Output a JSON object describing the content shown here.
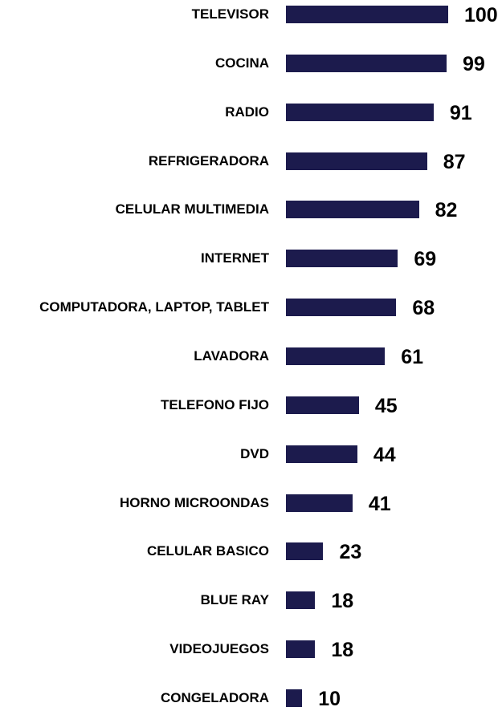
{
  "chart_data": {
    "type": "bar",
    "orientation": "horizontal",
    "color": "#1c1b4d",
    "categories": [
      "TELEVISOR",
      "COCINA",
      "RADIO",
      "REFRIGERADORA",
      "CELULAR MULTIMEDIA",
      "INTERNET",
      "COMPUTADORA, LAPTOP, TABLET",
      "LAVADORA",
      "TELEFONO FIJO",
      "DVD",
      "HORNO MICROONDAS",
      "CELULAR BASICO",
      "BLUE RAY",
      "VIDEOJUEGOS",
      "CONGELADORA"
    ],
    "values": [
      100,
      99,
      91,
      87,
      82,
      69,
      68,
      61,
      45,
      44,
      41,
      23,
      18,
      18,
      10
    ]
  }
}
